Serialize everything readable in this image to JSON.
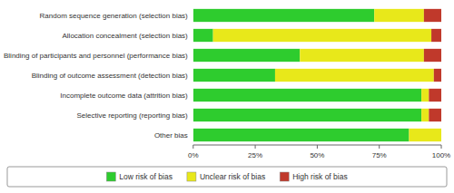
{
  "chart_data": {
    "type": "bar",
    "orientation": "horizontal",
    "stacked": true,
    "categories": [
      "Random sequence generation (selection bias)",
      "Allocation concealment (selection bias)",
      "Blinding of participants and personnel (performance bias)",
      "Blinding of outcome assessment (detection bias)",
      "Incomplete outcome data (attrition bias)",
      "Selective reporting (reporting bias)",
      "Other bias"
    ],
    "series": [
      {
        "name": "Low risk of bias",
        "color": "#2ECC2E",
        "values": [
          73,
          8,
          43,
          33,
          92,
          92,
          87
        ]
      },
      {
        "name": "Unclear risk of bias",
        "color": "#E8E81A",
        "values": [
          20,
          88,
          50,
          64,
          3,
          3,
          13
        ]
      },
      {
        "name": "High risk of bias",
        "color": "#C0392B",
        "values": [
          7,
          4,
          7,
          3,
          5,
          5,
          0
        ]
      }
    ],
    "xlim": [
      0,
      100
    ],
    "xticks": [
      {
        "value": 0,
        "label": "0%"
      },
      {
        "value": 25,
        "label": "25%"
      },
      {
        "value": 50,
        "label": "50%"
      },
      {
        "value": 75,
        "label": "75%"
      },
      {
        "value": 100,
        "label": "100%"
      }
    ],
    "legend": "bottom"
  }
}
